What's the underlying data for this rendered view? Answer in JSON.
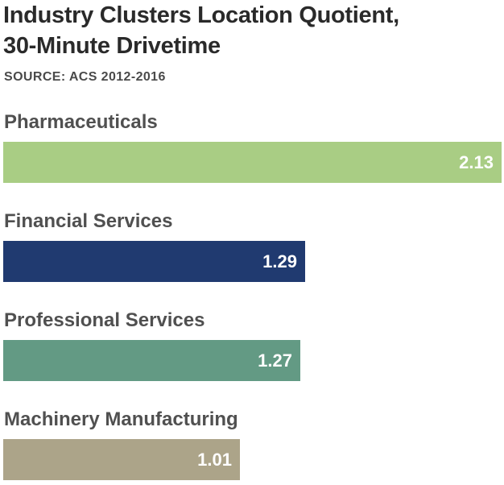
{
  "chart_data": {
    "type": "bar",
    "orientation": "horizontal",
    "title": "Industry Clusters Location Quotient,\n30-Minute Drivetime",
    "subtitle": "SOURCE: ACS 2012-2016",
    "categories": [
      "Pharmaceuticals",
      "Financial Services",
      "Professional Services",
      "Machinery Manufacturing"
    ],
    "values": [
      2.13,
      1.29,
      1.27,
      1.01
    ],
    "value_labels": [
      "2.13",
      "1.29",
      "1.27",
      "1.01"
    ],
    "colors": [
      "#a9cd84",
      "#203a70",
      "#639a84",
      "#aca489"
    ],
    "xlim": [
      0,
      2.13
    ],
    "xlabel": "",
    "ylabel": "",
    "grid": false,
    "legend": "none"
  }
}
